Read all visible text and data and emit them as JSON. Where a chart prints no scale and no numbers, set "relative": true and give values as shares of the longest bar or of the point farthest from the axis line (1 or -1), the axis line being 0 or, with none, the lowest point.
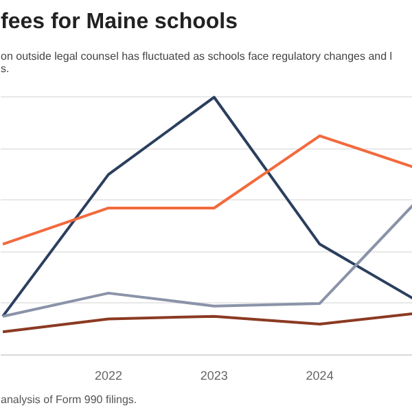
{
  "chart_data": {
    "type": "line",
    "title": "fees for Maine schools",
    "subtitle": "on outside legal counsel has fluctuated as schools face regulatory changes and l\ns.",
    "x": [
      2021,
      2022,
      2023,
      2024,
      2024.88
    ],
    "xlim": [
      2020.98,
      2024.88
    ],
    "xticks": [
      2022,
      2023,
      2024
    ],
    "relative": true,
    "grid": "y",
    "series": [
      {
        "color": "#2b3f5e",
        "values": [
          0.15,
          0.7,
          1.0,
          0.43,
          0.22
        ]
      },
      {
        "color": "#f26a3d",
        "values": [
          0.43,
          0.57,
          0.57,
          0.85,
          0.73
        ]
      },
      {
        "color": "#8a93a8",
        "values": [
          0.15,
          0.24,
          0.19,
          0.2,
          0.58
        ]
      },
      {
        "color": "#8b3a22",
        "values": [
          0.09,
          0.14,
          0.15,
          0.12,
          0.16
        ]
      }
    ],
    "annotations": [
      "analysis of Form 990 filings."
    ]
  }
}
